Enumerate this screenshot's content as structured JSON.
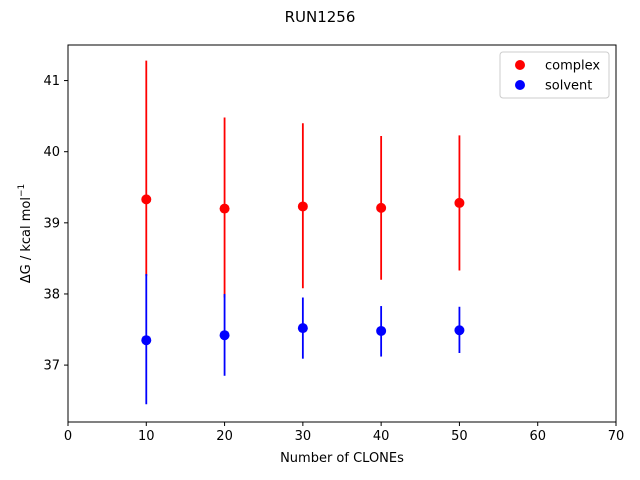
{
  "chart_data": {
    "type": "scatter",
    "title": "RUN1256",
    "xlabel": "Number of CLONEs",
    "ylabel": "ΔG / kcal mol",
    "ylabel_superscript": "−1",
    "xlim": [
      0,
      70
    ],
    "ylim": [
      36.2,
      41.5
    ],
    "xticks": [
      0,
      10,
      20,
      30,
      40,
      50,
      60,
      70
    ],
    "yticks": [
      37,
      38,
      39,
      40,
      41
    ],
    "grid": false,
    "legend_position": "top-right",
    "series": [
      {
        "name": "complex",
        "color": "#ff0000",
        "x": [
          10,
          20,
          30,
          40,
          50
        ],
        "y": [
          39.33,
          39.2,
          39.23,
          39.21,
          39.28
        ],
        "yerr_low": [
          38.25,
          37.95,
          38.08,
          38.2,
          38.33
        ],
        "yerr_high": [
          41.28,
          40.48,
          40.4,
          40.22,
          40.23
        ]
      },
      {
        "name": "solvent",
        "color": "#0000ff",
        "x": [
          10,
          20,
          30,
          40,
          50
        ],
        "y": [
          37.35,
          37.42,
          37.52,
          37.48,
          37.49
        ],
        "yerr_low": [
          36.45,
          36.85,
          37.09,
          37.12,
          37.17
        ],
        "yerr_high": [
          38.28,
          38.0,
          37.95,
          37.83,
          37.82
        ]
      }
    ]
  }
}
